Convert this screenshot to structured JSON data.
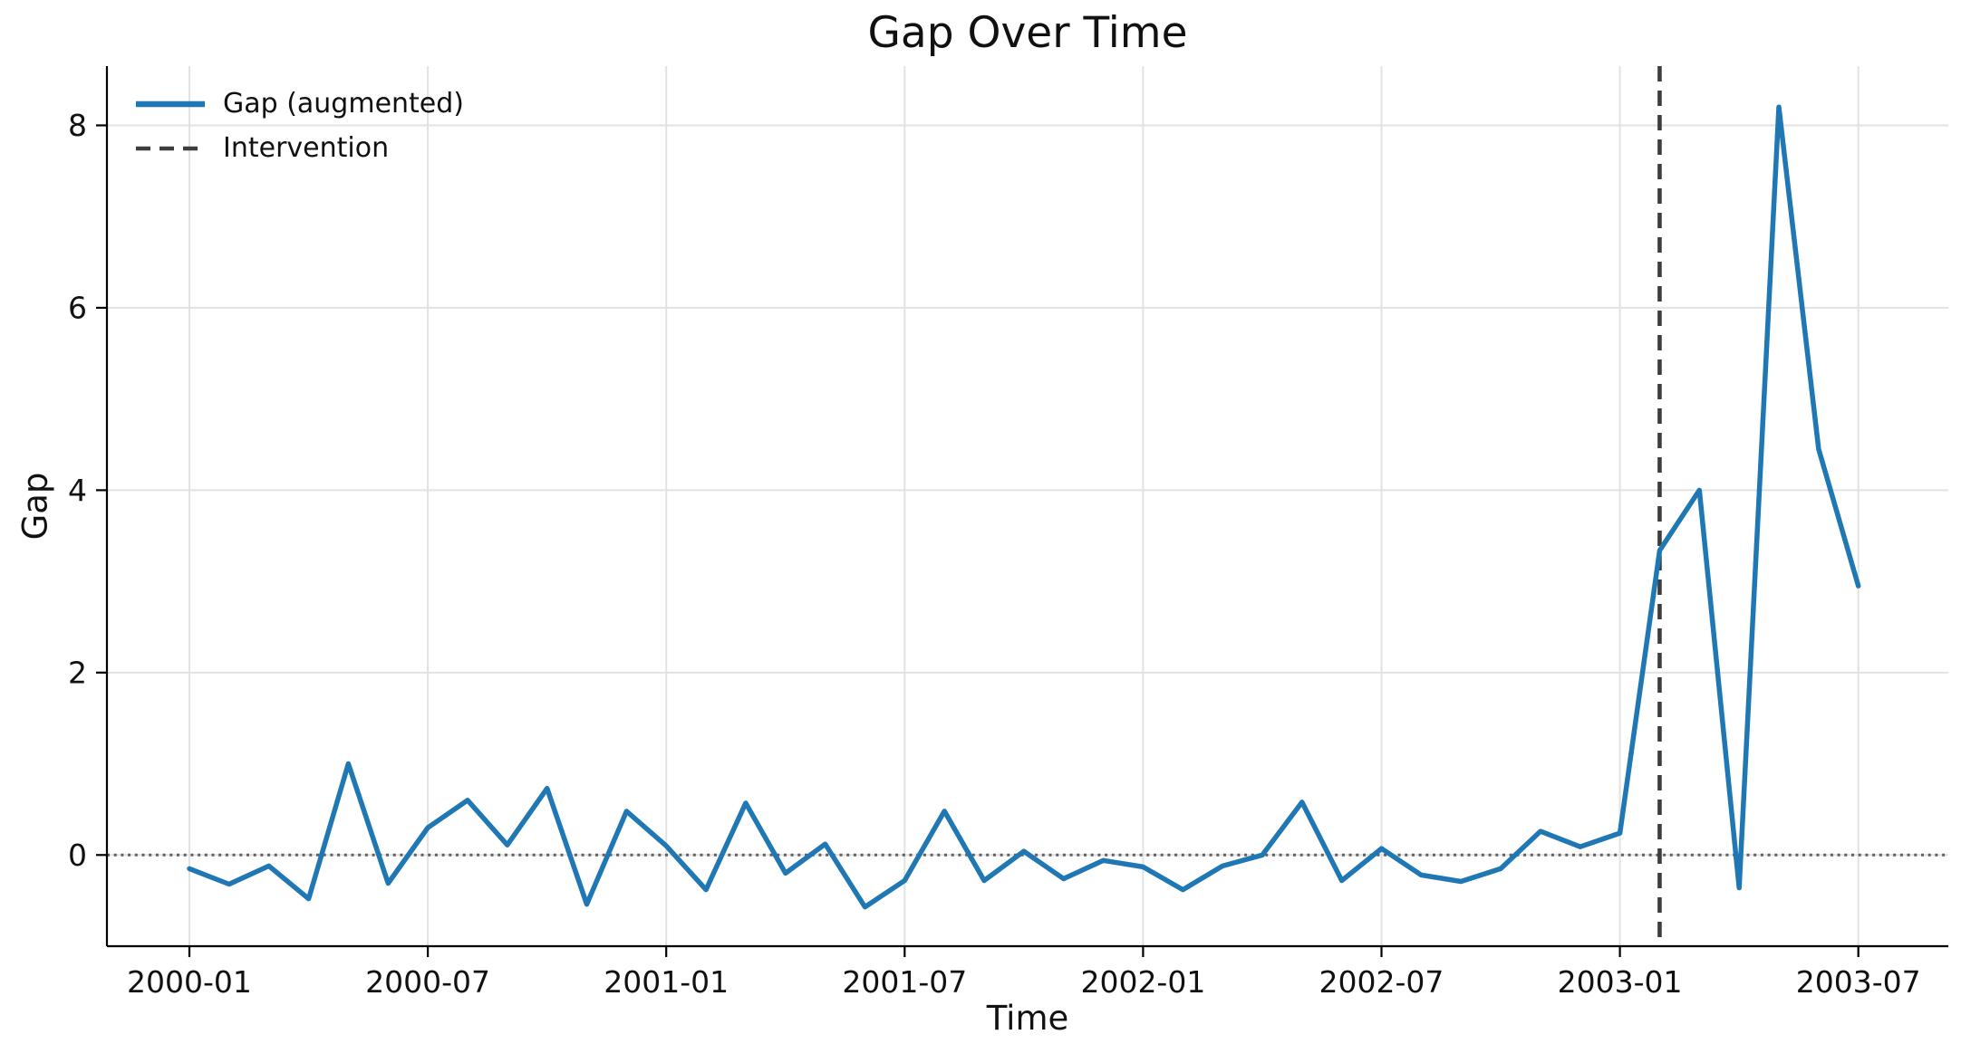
{
  "chart": {
    "title": "Gap Over Time",
    "xlabel": "Time",
    "ylabel": "Gap",
    "legend": {
      "items": [
        {
          "label": "Gap (augmented)",
          "style": "solid",
          "color": "#1f77b4"
        },
        {
          "label": "Intervention",
          "style": "dashed",
          "color": "#3d3d3d"
        }
      ]
    }
  },
  "chart_data": {
    "type": "line",
    "title": "Gap Over Time",
    "xlabel": "Time",
    "ylabel": "Gap",
    "x": [
      "2000-01",
      "2000-02",
      "2000-03",
      "2000-04",
      "2000-05",
      "2000-06",
      "2000-07",
      "2000-08",
      "2000-09",
      "2000-10",
      "2000-11",
      "2000-12",
      "2001-01",
      "2001-02",
      "2001-03",
      "2001-04",
      "2001-05",
      "2001-06",
      "2001-07",
      "2001-08",
      "2001-09",
      "2001-10",
      "2001-11",
      "2001-12",
      "2002-01",
      "2002-02",
      "2002-03",
      "2002-04",
      "2002-05",
      "2002-06",
      "2002-07",
      "2002-08",
      "2002-09",
      "2002-10",
      "2002-11",
      "2002-12",
      "2003-01",
      "2003-02",
      "2003-03",
      "2003-04",
      "2003-05",
      "2003-06",
      "2003-07"
    ],
    "series": [
      {
        "name": "Gap (augmented)",
        "color": "#1f77b4",
        "values": [
          -0.15,
          -0.32,
          -0.12,
          -0.48,
          1.0,
          -0.31,
          0.3,
          0.6,
          0.11,
          0.73,
          -0.54,
          0.48,
          0.1,
          -0.38,
          0.57,
          -0.2,
          0.12,
          -0.57,
          -0.28,
          0.48,
          -0.28,
          0.04,
          -0.26,
          -0.06,
          -0.13,
          -0.38,
          -0.12,
          0.0,
          0.58,
          -0.28,
          0.07,
          -0.22,
          -0.29,
          -0.15,
          0.26,
          0.09,
          0.24,
          3.34,
          4.0,
          -0.36,
          8.2,
          4.45,
          2.95
        ]
      }
    ],
    "x_tick_labels": [
      "2000-01",
      "2000-07",
      "2001-01",
      "2001-07",
      "2002-01",
      "2002-07",
      "2003-01",
      "2003-07"
    ],
    "y_ticks": [
      0,
      2,
      4,
      6,
      8
    ],
    "ylim": [
      -1.0,
      8.65
    ],
    "grid": true,
    "grid_color": "#e2e2e2",
    "legend_position": "upper-left",
    "zero_line": {
      "y": 0,
      "style": "dotted",
      "color": "#606060"
    },
    "intervention": {
      "label": "Intervention",
      "x": "2003-02",
      "style": "dashed",
      "color": "#3d3d3d"
    }
  }
}
